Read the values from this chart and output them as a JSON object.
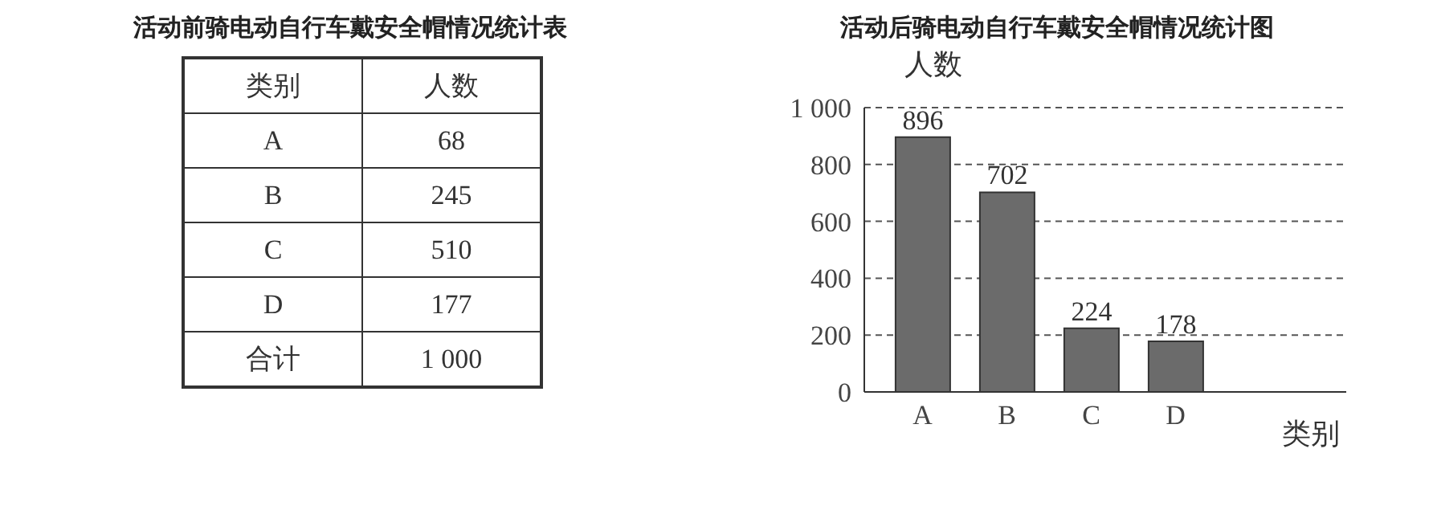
{
  "chart_data": [
    {
      "type": "other",
      "title": "活动前骑电动自行车戴安全帽情况统计表",
      "xlabel": "类别",
      "ylabel": "人数",
      "categories": [
        "A",
        "B",
        "C",
        "D",
        "合计"
      ],
      "value_labels": [
        "68",
        "245",
        "510",
        "177",
        "1 000"
      ]
    },
    {
      "type": "bar",
      "title": "活动后骑电动自行车戴安全帽情况统计图",
      "xlabel": "类别",
      "ylabel": "人数",
      "categories": [
        "A",
        "B",
        "C",
        "D"
      ],
      "values": [
        896,
        702,
        224,
        178
      ],
      "color": "#6b6b6b",
      "data_labels": true,
      "ylim": [
        0,
        1000
      ],
      "yticks": [
        0,
        200,
        400,
        600,
        800,
        {
          "value": 1000,
          "label": "1 000"
        }
      ],
      "grid": "y"
    }
  ]
}
